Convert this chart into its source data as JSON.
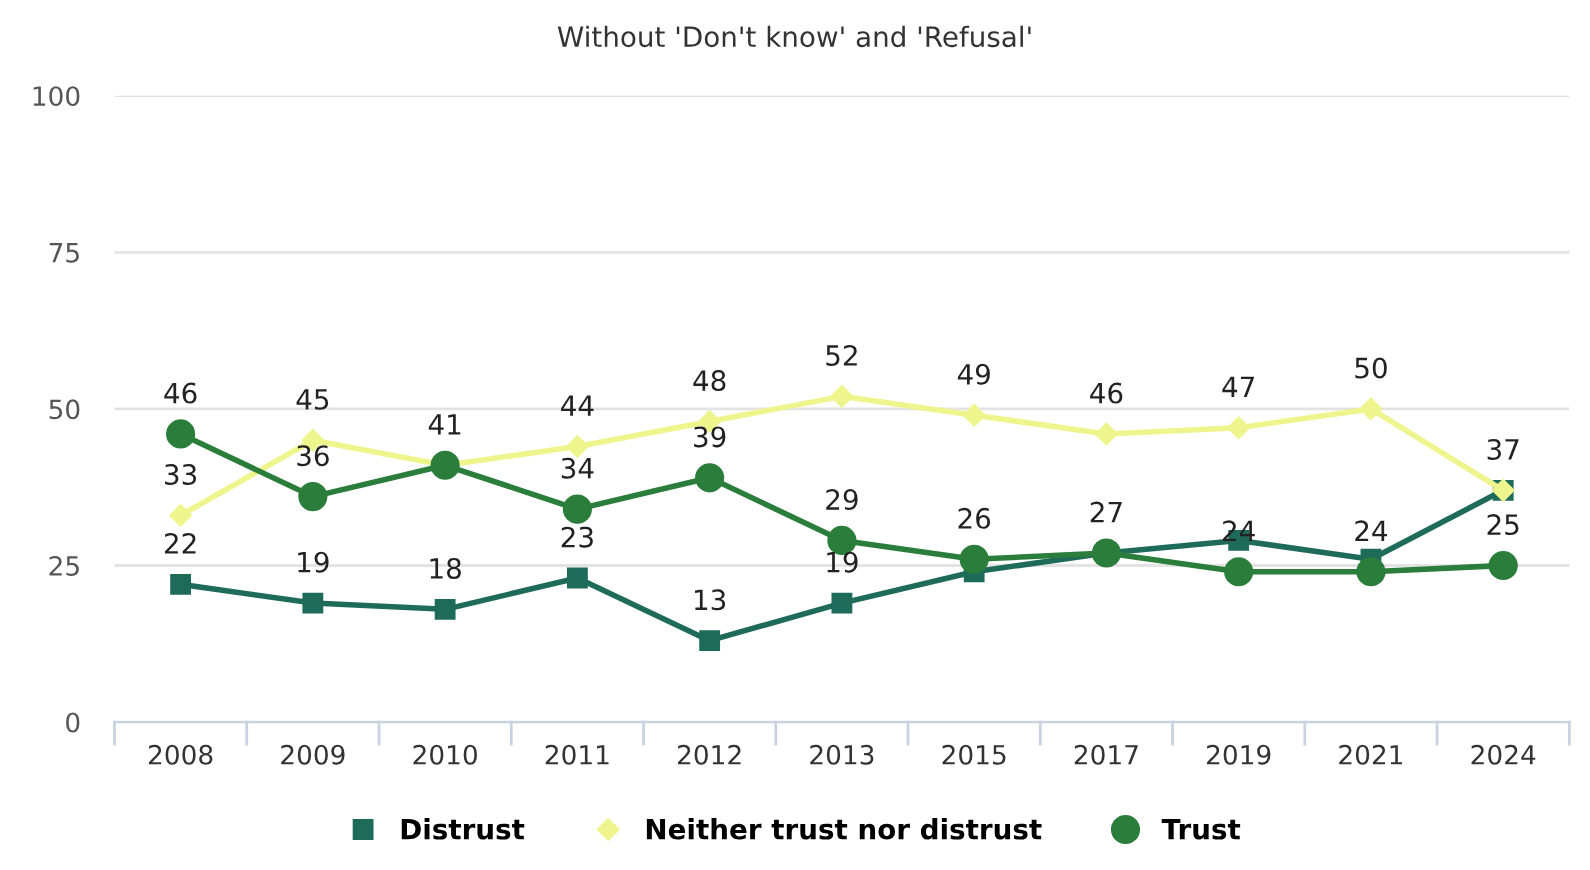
{
  "chart_data": {
    "type": "line",
    "title": "Without 'Don't know' and 'Refusal'",
    "categories": [
      "2008",
      "2009",
      "2010",
      "2011",
      "2012",
      "2013",
      "2015",
      "2017",
      "2019",
      "2021",
      "2024"
    ],
    "series": [
      {
        "name": "Distrust",
        "color": "#1f6b5a",
        "marker": "square",
        "values": [
          22,
          19,
          18,
          23,
          13,
          19,
          24,
          27,
          29,
          26,
          37
        ],
        "value_labels": [
          "22",
          "19",
          "18",
          "23",
          "13",
          "19",
          null,
          null,
          null,
          null,
          "37"
        ]
      },
      {
        "name": "Neither trust nor distrust",
        "color": "#eef58c",
        "marker": "diamond",
        "values": [
          33,
          45,
          41,
          44,
          48,
          52,
          49,
          46,
          47,
          50,
          37
        ],
        "value_labels": [
          "33",
          "45",
          "41",
          "44",
          "48",
          "52",
          "49",
          "46",
          "47",
          "50",
          null
        ]
      },
      {
        "name": "Trust",
        "color": "#2a7d3a",
        "marker": "circle",
        "values": [
          46,
          36,
          41,
          34,
          39,
          29,
          26,
          27,
          24,
          24,
          25
        ],
        "value_labels": [
          "46",
          "36",
          null,
          "34",
          "39",
          "29",
          "26",
          "27",
          "24",
          "24",
          "25"
        ]
      }
    ],
    "ylim": [
      0,
      100
    ],
    "yticks": [
      0,
      25,
      50,
      75,
      100
    ],
    "grid": "y",
    "legend": "bottom"
  }
}
